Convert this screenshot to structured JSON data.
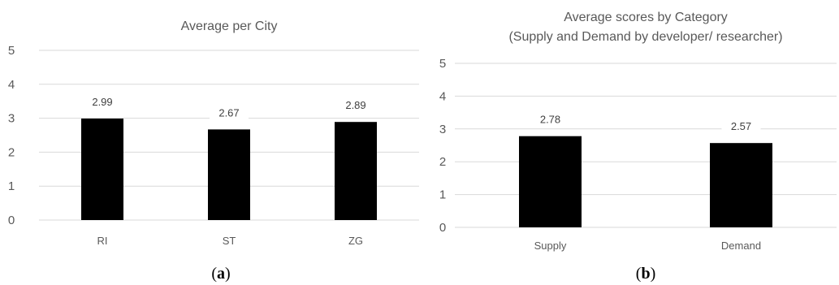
{
  "chart_data": [
    {
      "type": "bar",
      "title": "Average per City",
      "categories": [
        "RI",
        "ST",
        "ZG"
      ],
      "values": [
        2.99,
        2.67,
        2.89
      ],
      "data_labels": [
        "2.99",
        "2.67",
        "2.89"
      ],
      "ylim": [
        0,
        5
      ],
      "yticks": [
        "0",
        "1",
        "2",
        "3",
        "4",
        "5"
      ],
      "grid": true,
      "bar_color": "#000000",
      "panel_label": "a"
    },
    {
      "type": "bar",
      "title_line1": "Average scores by Category",
      "title_line2": "(Supply and Demand by developer/ researcher)",
      "categories": [
        "Supply",
        "Demand"
      ],
      "values": [
        2.78,
        2.57
      ],
      "data_labels": [
        "2.78",
        "2.57"
      ],
      "ylim": [
        0,
        5
      ],
      "yticks": [
        "0",
        "1",
        "2",
        "3",
        "4",
        "5"
      ],
      "grid": true,
      "bar_color": "#000000",
      "panel_label": "b"
    }
  ]
}
